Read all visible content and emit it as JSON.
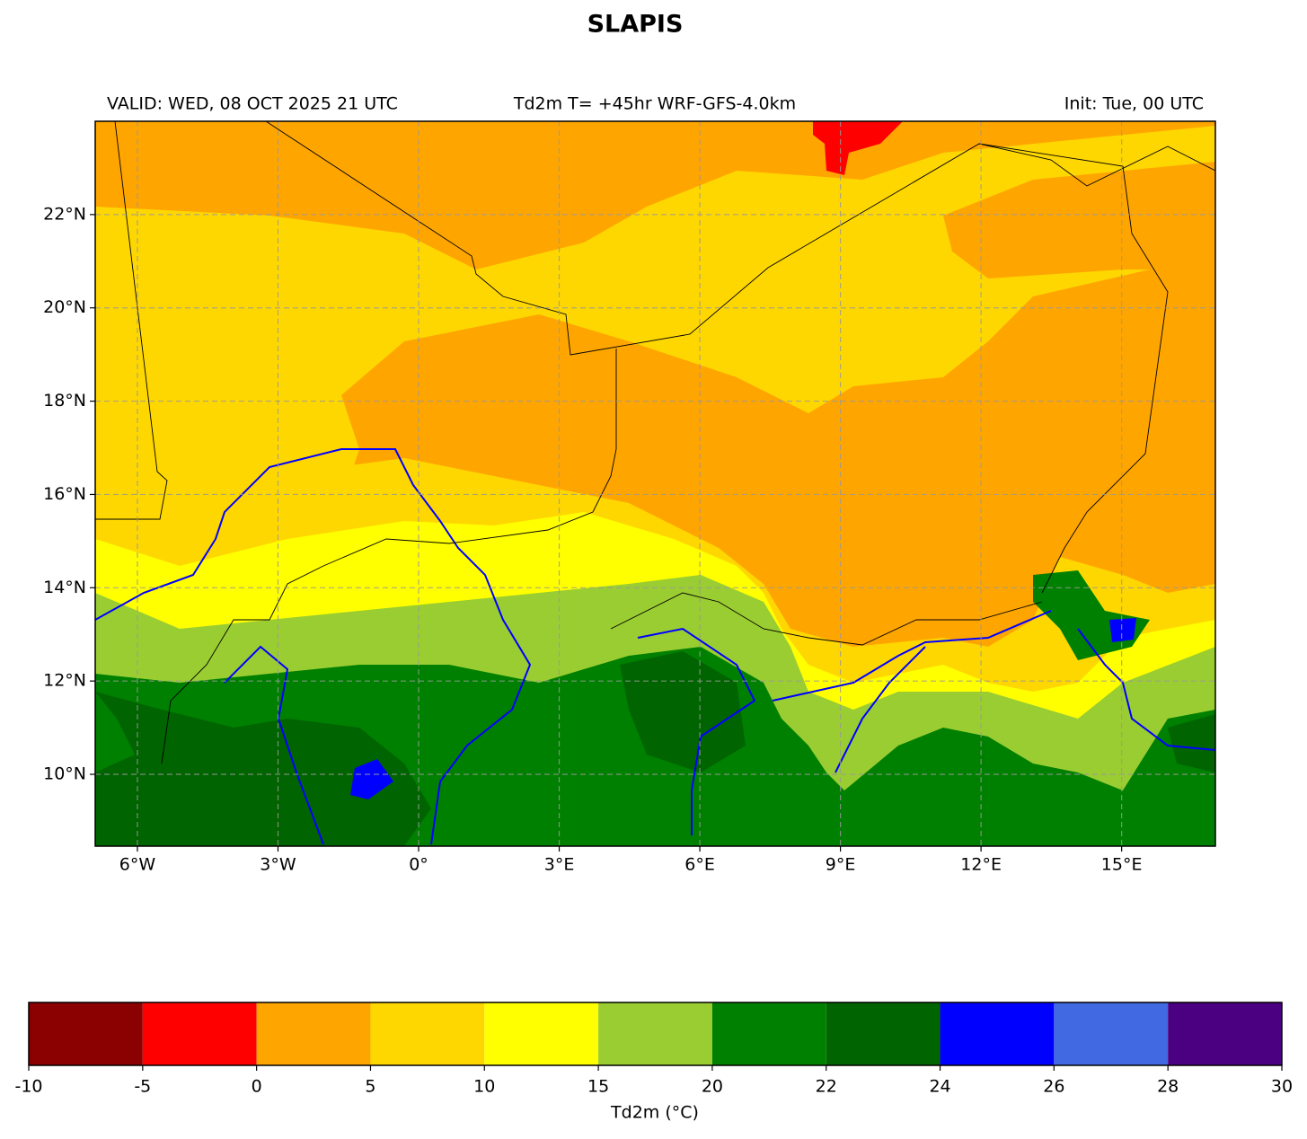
{
  "header": {
    "title": "SLAPIS",
    "left": "VALID: WED, 08 OCT 2025 21 UTC",
    "center": "Td2m T= +45hr WRF-GFS-4.0km",
    "right": "Init: Tue, 00 UTC"
  },
  "map": {
    "xlim": [
      -6.9,
      17.0
    ],
    "ylim": [
      8.46,
      24
    ],
    "xticks": [
      {
        "value": -6,
        "label": "6°W"
      },
      {
        "value": -3,
        "label": "3°W"
      },
      {
        "value": 0,
        "label": "0°"
      },
      {
        "value": 3,
        "label": "3°E"
      },
      {
        "value": 6,
        "label": "6°E"
      },
      {
        "value": 9,
        "label": "9°E"
      },
      {
        "value": 12,
        "label": "12°E"
      },
      {
        "value": 15,
        "label": "15°E"
      }
    ],
    "yticks": [
      {
        "value": 10,
        "label": "10°N"
      },
      {
        "value": 12,
        "label": "12°N"
      },
      {
        "value": 14,
        "label": "14°N"
      },
      {
        "value": 16,
        "label": "16°N"
      },
      {
        "value": 18,
        "label": "18°N"
      },
      {
        "value": 20,
        "label": "20°N"
      },
      {
        "value": 22,
        "label": "22°N"
      }
    ],
    "grid": true
  },
  "colorbar": {
    "label": "Td2m (°C)",
    "boundaries": [
      -10,
      -5,
      0,
      5,
      10,
      15,
      20,
      22,
      24,
      26,
      28,
      30
    ],
    "colors": [
      "#8b0000",
      "#ff0000",
      "#ffa500",
      "#ffd700",
      "#ffff00",
      "#9acd32",
      "#008000",
      "#006400",
      "#0000ff",
      "#4169e1",
      "#4b0082"
    ]
  }
}
